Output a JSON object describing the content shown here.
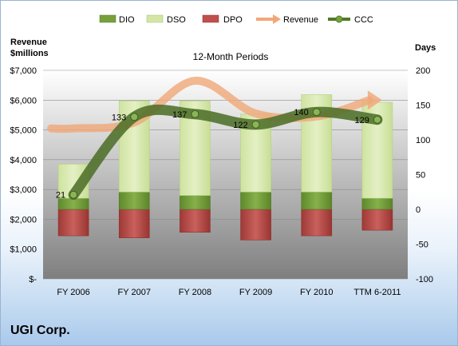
{
  "company": "UGI Corp.",
  "chart_data": {
    "type": "bar",
    "subtitle": "12-Month Periods",
    "left_axis": {
      "title_line1": "Revenue",
      "title_line2": "$millions",
      "range": [
        0,
        7000
      ],
      "ticks": [
        0,
        1000,
        2000,
        3000,
        4000,
        5000,
        6000,
        7000
      ],
      "tick_labels": [
        "$-",
        "$1,000",
        "$2,000",
        "$3,000",
        "$4,000",
        "$5,000",
        "$6,000",
        "$7,000"
      ]
    },
    "right_axis": {
      "title": "Days",
      "range": [
        -100,
        200
      ],
      "ticks": [
        -100,
        -50,
        0,
        50,
        100,
        150,
        200
      ],
      "tick_labels": [
        "-100",
        "-50",
        "0",
        "50",
        "100",
        "150",
        "200"
      ]
    },
    "categories": [
      "FY 2006",
      "FY 2007",
      "FY 2008",
      "FY 2009",
      "FY 2010",
      "TTM 6-2011"
    ],
    "legend": {
      "position": "top",
      "items": [
        {
          "label": "DIO",
          "color": "#77a03c"
        },
        {
          "label": "DSO",
          "color": "#d3e6a6"
        },
        {
          "label": "DPO",
          "color": "#c0504d"
        },
        {
          "label": "Revenue",
          "color": "#f0a878"
        },
        {
          "label": "CCC",
          "color": "#4f7a28"
        }
      ]
    },
    "days_series": {
      "DIO": [
        16,
        25,
        20,
        25,
        25,
        16
      ],
      "DSO": [
        49,
        131,
        136,
        112,
        140,
        138
      ],
      "DPO": [
        -38,
        -41,
        -33,
        -44,
        -38,
        -30
      ]
    },
    "revenue": [
      5050,
      5250,
      6650,
      5550,
      5450,
      6000
    ],
    "ccc": [
      21,
      133,
      137,
      122,
      140,
      129
    ],
    "ccc_labels": [
      "21",
      "133",
      "137",
      "122",
      "140",
      "129"
    ],
    "colors": {
      "plot_background_top": "#ffffff",
      "plot_background_bottom": "#7f7f7f",
      "revenue_line": "#f0a878",
      "ccc_line": "#4f6f2a"
    }
  }
}
